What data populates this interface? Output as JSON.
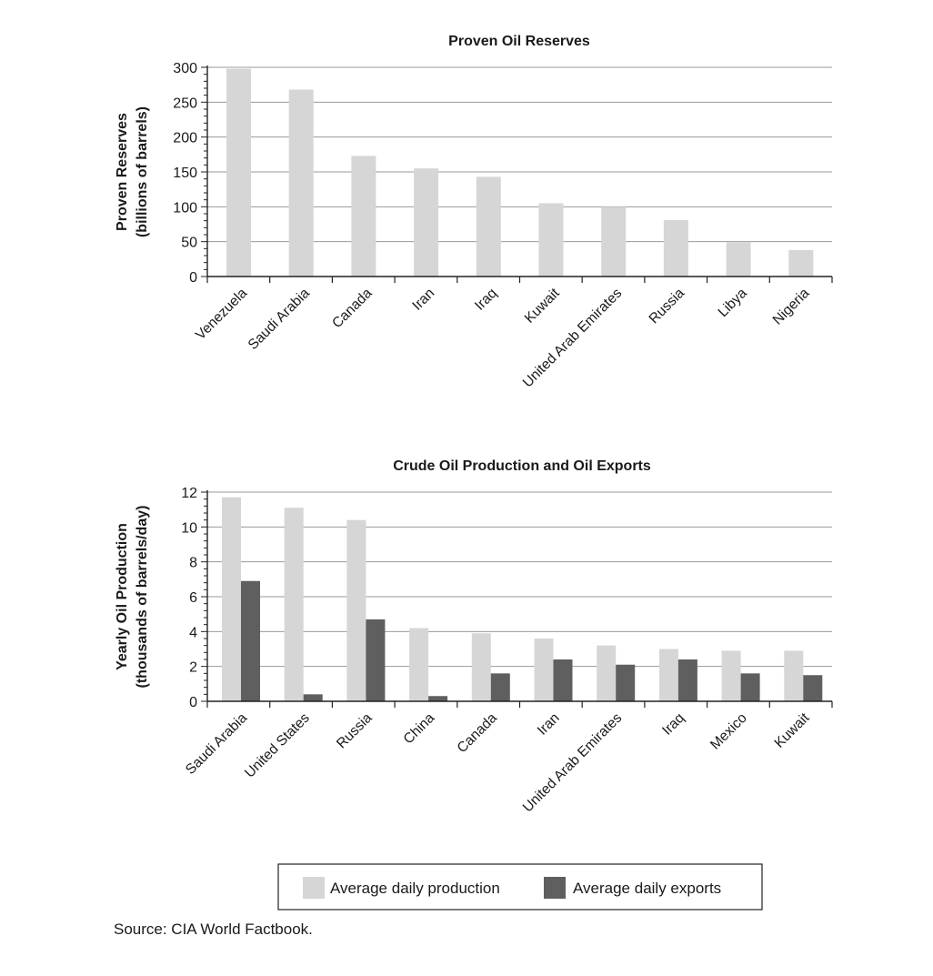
{
  "colors": {
    "production": "#d6d6d6",
    "exports": "#5f5f5f",
    "axis": "#222222",
    "grid": "#9a9a9a"
  },
  "source": "Source: CIA World Factbook.",
  "legend_position": "bottom",
  "legend": {
    "production": "Average daily production",
    "exports": "Average daily exports"
  },
  "chart_data": [
    {
      "type": "bar",
      "title": "Proven Oil Reserves",
      "xlabel": "",
      "ylabel": [
        "Proven Reserves",
        "(billions of barrels)"
      ],
      "ylim": [
        0,
        300
      ],
      "yticks": [
        0,
        50,
        100,
        150,
        200,
        250,
        300
      ],
      "grid": true,
      "categories": [
        "Venezuela",
        "Saudi Arabia",
        "Canada",
        "Iran",
        "Iraq",
        "Kuwait",
        "United Arab Emirates",
        "Russia",
        "Libya",
        "Nigeria"
      ],
      "values": [
        298,
        268,
        173,
        155,
        143,
        105,
        100,
        81,
        49,
        38
      ]
    },
    {
      "type": "bar",
      "title": "Crude Oil Production and Oil Exports",
      "xlabel": "",
      "ylabel": [
        "Yearly Oil Production",
        "(thousands of barrels/day)"
      ],
      "ylim": [
        0,
        12
      ],
      "yticks": [
        0,
        2,
        4,
        6,
        8,
        10,
        12
      ],
      "grid": true,
      "categories": [
        "Saudi Arabia",
        "United States",
        "Russia",
        "China",
        "Canada",
        "Iran",
        "United Arab Emirates",
        "Iraq",
        "Mexico",
        "Kuwait"
      ],
      "series": [
        {
          "name": "Average daily production",
          "values": [
            11.7,
            11.1,
            10.4,
            4.2,
            3.9,
            3.6,
            3.2,
            3.0,
            2.9,
            2.9
          ]
        },
        {
          "name": "Average daily exports",
          "values": [
            6.9,
            0.4,
            4.7,
            0.3,
            1.6,
            2.4,
            2.1,
            2.4,
            1.6,
            1.5
          ]
        }
      ]
    }
  ]
}
